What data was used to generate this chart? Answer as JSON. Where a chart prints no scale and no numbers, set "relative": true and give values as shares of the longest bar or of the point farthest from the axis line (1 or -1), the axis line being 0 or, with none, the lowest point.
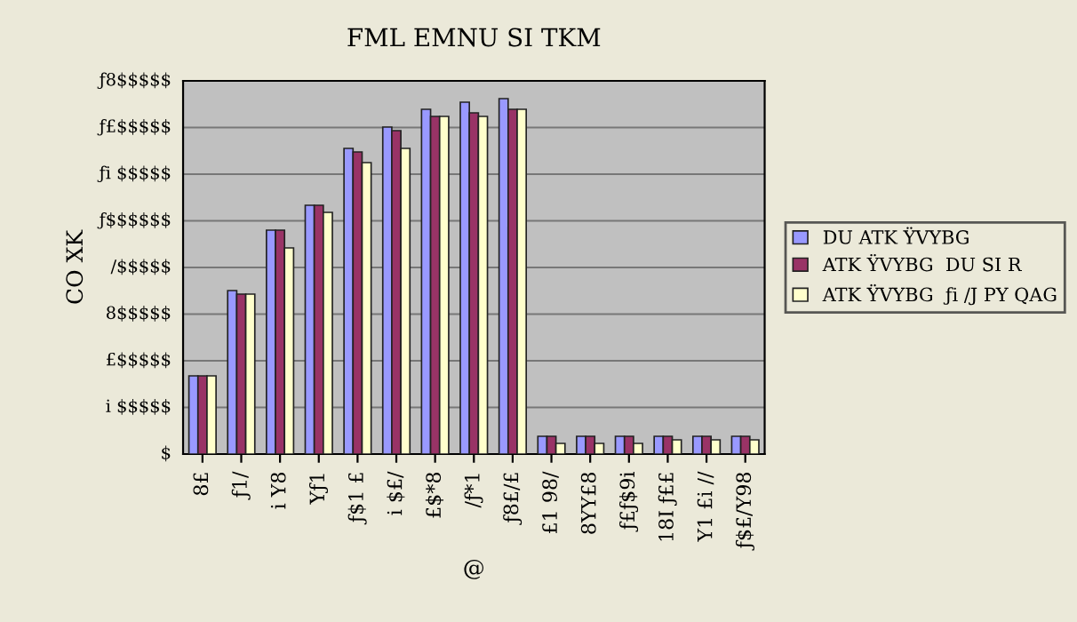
{
  "chart_data": {
    "type": "bar",
    "title": "FML EMNU SI TKM",
    "xlabel": "@",
    "ylabel": "CO XK",
    "relative": true,
    "categories": [
      "8£",
      "ƒ1/",
      "i Y8",
      "Yƒ1",
      "ƒ$1 £",
      "i $£/",
      "£$*8",
      "/ƒ*1",
      "ƒ8£/£",
      "£1 98/",
      "8YY£8",
      "ƒ£ƒ$9i",
      "18I ƒ££",
      "Y1 £i //",
      "ƒ$£/Y98"
    ],
    "series": [
      {
        "name": "DU ATK ŸVYBG",
        "color": "#9999ff",
        "values": [
          0.22,
          0.46,
          0.63,
          0.7,
          0.86,
          0.92,
          0.97,
          0.99,
          1,
          0.05,
          0.05,
          0.05,
          0.05,
          0.05,
          0.05
        ]
      },
      {
        "name": "ATK ŸVYBG  DU SI R",
        "color": "#993366",
        "values": [
          0.22,
          0.45,
          0.63,
          0.7,
          0.85,
          0.91,
          0.95,
          0.96,
          0.97,
          0.05,
          0.05,
          0.05,
          0.05,
          0.05,
          0.05
        ]
      },
      {
        "name": "ATK ŸVYBG  ƒi /J PY QAG",
        "color": "#ffffcc",
        "values": [
          0.22,
          0.45,
          0.58,
          0.68,
          0.82,
          0.86,
          0.95,
          0.95,
          0.97,
          0.03,
          0.03,
          0.03,
          0.04,
          0.04,
          0.04
        ]
      }
    ],
    "annotations": [
      "$",
      "i $$$$$",
      "£$$$$$",
      "8$$$$$",
      "/$$$$$",
      "ƒ$$$$$$",
      "ƒi $$$$$",
      "ƒ£$$$$$",
      "ƒ8$$$$$"
    ],
    "grid": "y",
    "legend": "right"
  }
}
